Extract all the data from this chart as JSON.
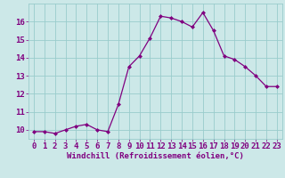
{
  "x": [
    0,
    1,
    2,
    3,
    4,
    5,
    6,
    7,
    8,
    9,
    10,
    11,
    12,
    13,
    14,
    15,
    16,
    17,
    18,
    19,
    20,
    21,
    22,
    23
  ],
  "y": [
    9.9,
    9.9,
    9.8,
    10.0,
    10.2,
    10.3,
    10.0,
    9.9,
    11.4,
    13.5,
    14.1,
    15.1,
    16.3,
    16.2,
    16.0,
    15.7,
    16.5,
    15.5,
    14.1,
    13.9,
    13.5,
    13.0,
    12.4,
    12.4
  ],
  "line_color": "#800080",
  "marker": "D",
  "marker_size": 2.0,
  "linewidth": 0.9,
  "bg_color": "#cce8e8",
  "grid_color": "#99cccc",
  "xlabel": "Windchill (Refroidissement éolien,°C)",
  "xlabel_fontsize": 6.5,
  "tick_fontsize": 6.5,
  "ylim": [
    9.5,
    17.0
  ],
  "yticks": [
    10,
    11,
    12,
    13,
    14,
    15,
    16
  ],
  "xlim": [
    -0.5,
    23.5
  ],
  "xticks": [
    0,
    1,
    2,
    3,
    4,
    5,
    6,
    7,
    8,
    9,
    10,
    11,
    12,
    13,
    14,
    15,
    16,
    17,
    18,
    19,
    20,
    21,
    22,
    23
  ]
}
